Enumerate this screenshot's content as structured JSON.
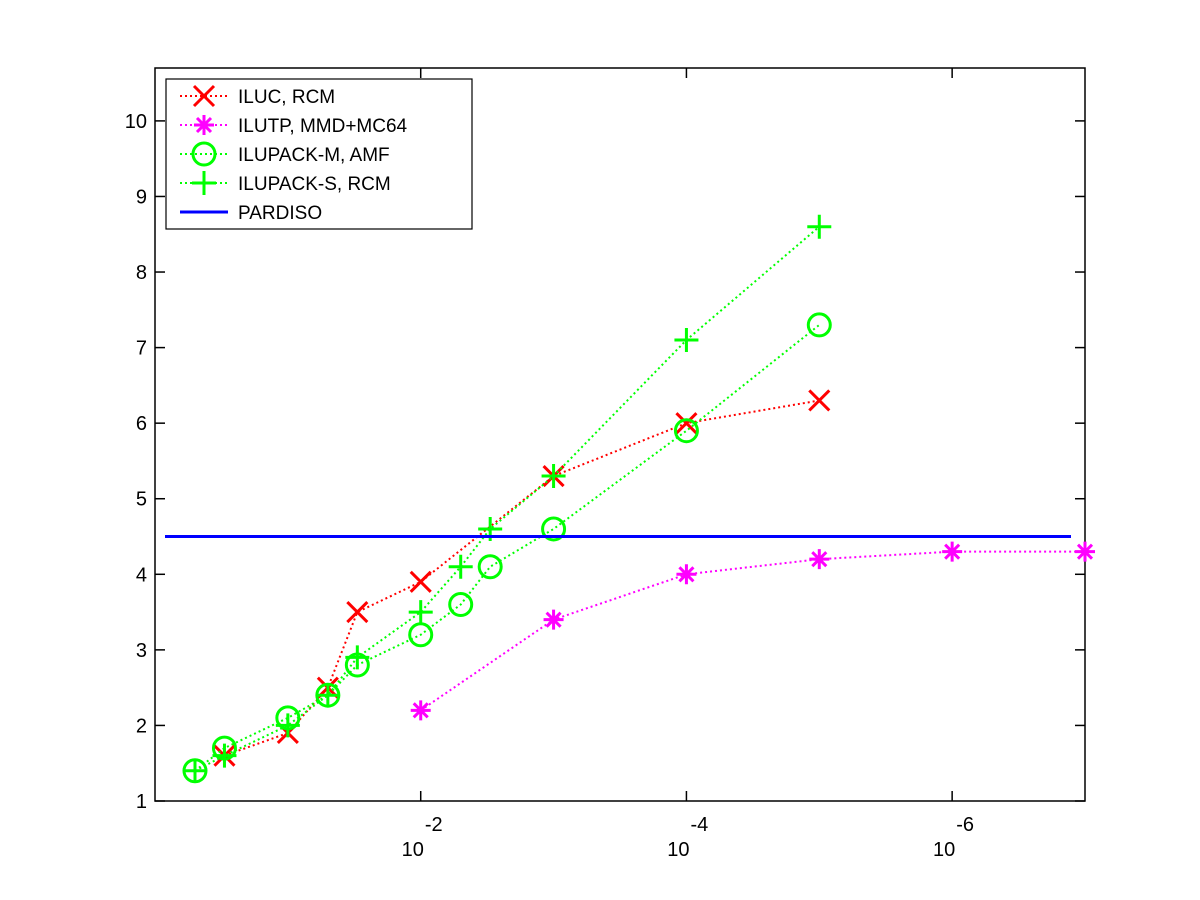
{
  "chart_data": {
    "type": "line",
    "title": "",
    "xlabel": "",
    "ylabel": "",
    "x_scale": "log-reversed",
    "xlim": [
      1,
      1e-07
    ],
    "ylim": [
      1,
      10.7
    ],
    "xticks": [
      {
        "value": 0.01,
        "base": "10",
        "exp": "-2"
      },
      {
        "value": 0.0001,
        "base": "10",
        "exp": "-4"
      },
      {
        "value": 1e-06,
        "base": "10",
        "exp": "-6"
      }
    ],
    "yticks": [
      "1",
      "2",
      "3",
      "4",
      "5",
      "6",
      "7",
      "8",
      "9",
      "10"
    ],
    "legend_position": "top-left",
    "grid": false,
    "series": [
      {
        "name": "ILUC, RCM",
        "color": "#ff0000",
        "marker": "x",
        "line": "dotted",
        "x": [
          0.3,
          0.1,
          0.05,
          0.03,
          0.01,
          0.001,
          0.0001,
          1e-05
        ],
        "y": [
          1.6,
          1.9,
          2.5,
          3.5,
          3.9,
          5.3,
          6.0,
          6.3
        ]
      },
      {
        "name": "ILUTP, MMD+MC64",
        "color": "#ff00ff",
        "marker": "star",
        "line": "dotted",
        "x": [
          0.01,
          0.001,
          0.0001,
          1e-05,
          1e-06,
          1e-07
        ],
        "y": [
          2.2,
          3.4,
          4.0,
          4.2,
          4.3,
          4.3
        ]
      },
      {
        "name": "ILUPACK-M, AMF",
        "color": "#00ff00",
        "marker": "circle",
        "line": "dotted",
        "x": [
          0.5,
          0.3,
          0.1,
          0.05,
          0.03,
          0.01,
          0.005,
          0.003,
          0.001,
          0.0001,
          1e-05
        ],
        "y": [
          1.4,
          1.7,
          2.1,
          2.4,
          2.8,
          3.2,
          3.6,
          4.1,
          4.6,
          5.9,
          7.3
        ]
      },
      {
        "name": "ILUPACK-S, RCM",
        "color": "#00ff00",
        "marker": "plus",
        "line": "dotted",
        "x": [
          0.5,
          0.3,
          0.1,
          0.05,
          0.03,
          0.01,
          0.005,
          0.003,
          0.001,
          0.0001,
          1e-05
        ],
        "y": [
          1.4,
          1.6,
          2.0,
          2.4,
          2.9,
          3.5,
          4.1,
          4.6,
          5.3,
          7.1,
          8.6
        ]
      },
      {
        "name": "PARDISO",
        "color": "#0000ff",
        "marker": "none",
        "line": "solid",
        "hline": 4.5
      }
    ]
  }
}
